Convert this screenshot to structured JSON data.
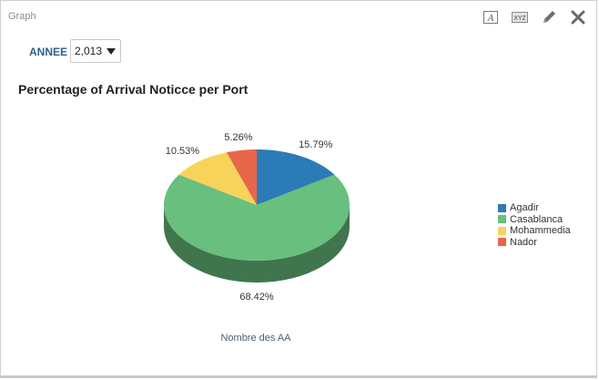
{
  "panel": {
    "title": "Graph",
    "tools": [
      {
        "name": "format-text-icon",
        "glyph": "A"
      },
      {
        "name": "xyz-icon",
        "glyph": "XYZ"
      },
      {
        "name": "edit-pencil-icon"
      },
      {
        "name": "close-icon"
      }
    ]
  },
  "filter": {
    "label": "ANNEE",
    "selected": "2,013"
  },
  "chart_data": {
    "type": "pie",
    "title": "Percentage of Arrival Noticce per Port",
    "xlabel": "Nombre des AA",
    "slices": [
      {
        "name": "Agadir",
        "value": 15.79,
        "label": "15.79%",
        "color": "#2b7bb7"
      },
      {
        "name": "Casablanca",
        "value": 68.42,
        "label": "68.42%",
        "color": "#68bf7e"
      },
      {
        "name": "Mohammedia",
        "value": 10.53,
        "label": "10.53%",
        "color": "#f7d35a"
      },
      {
        "name": "Nador",
        "value": 5.26,
        "label": "5.26%",
        "color": "#e8664a"
      }
    ],
    "legend_position": "right",
    "style": "3d"
  }
}
